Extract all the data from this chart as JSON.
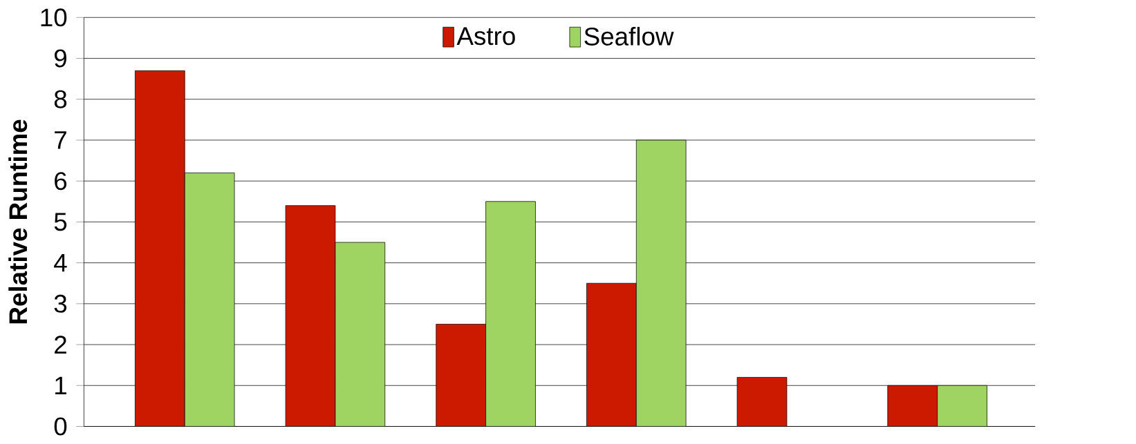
{
  "chart_data": {
    "type": "bar",
    "ylabel": "Relative Runtime",
    "categories": [
      null,
      null,
      null,
      null,
      null,
      null
    ],
    "series": [
      {
        "name": "Astro",
        "color": "#cc1a00",
        "values": [
          8.7,
          5.4,
          2.5,
          3.5,
          1.2,
          1
        ]
      },
      {
        "name": "Seaflow",
        "color": "#a0d462",
        "values": [
          6.2,
          4.5,
          5.5,
          7.0,
          null,
          1
        ]
      }
    ],
    "ylim": [
      0,
      10
    ],
    "yticks": [
      0,
      1,
      2,
      3,
      4,
      5,
      6,
      7,
      8,
      9,
      10
    ],
    "grid": "y",
    "legend": "top"
  }
}
